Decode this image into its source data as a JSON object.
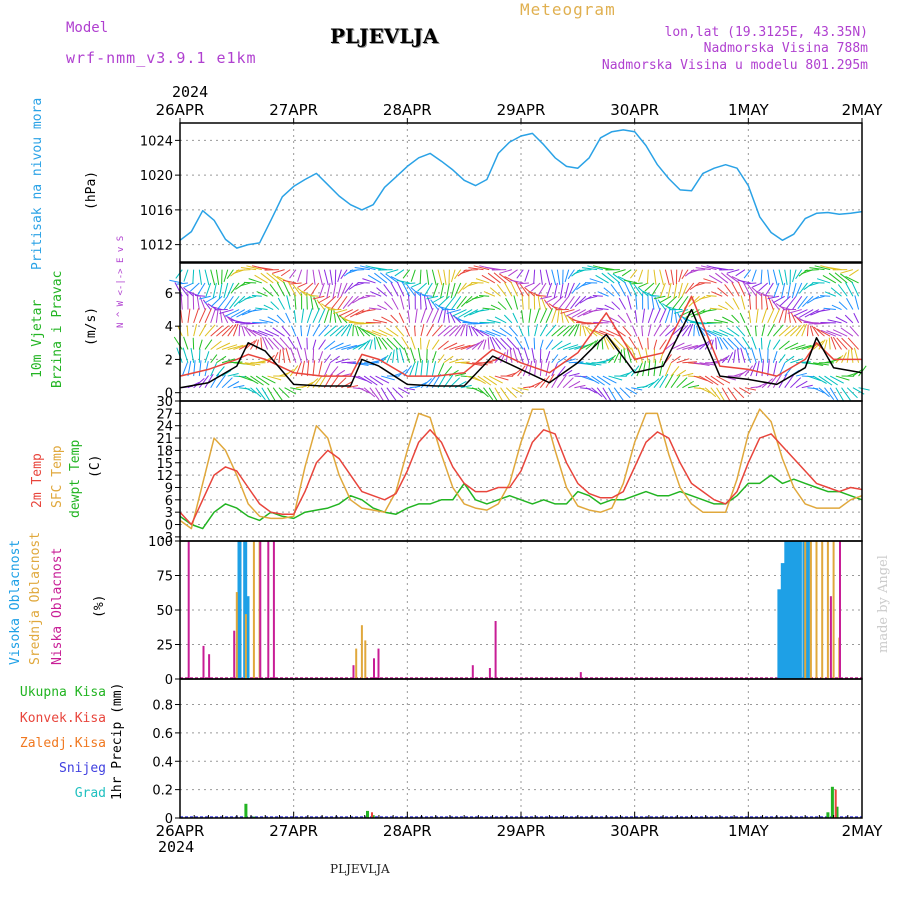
{
  "header": {
    "model_label": "Model",
    "model_name": "wrf-nmm_v3.9.1 e1km",
    "title": "PLJEVLJA",
    "subtitle": "Meteogram",
    "lonlat": "lon,lat (19.3125E, 43.35N)",
    "elevation": "Nadmorska Visina 788m",
    "model_elevation": "Nadmorska Visina u modelu 801.295m",
    "footer_title": "PLJEVLJA",
    "watermark": "made by Angel",
    "year_top": "2024",
    "year_bottom": "2024"
  },
  "colors": {
    "pressure": "#2aa2e6",
    "temp2m": "#e8453c",
    "sfc_temp": "#e0a83c",
    "dewpoint": "#22b422",
    "wind_speed": "#000000",
    "wind_max": "#e8453c",
    "purple": "#b040d0",
    "cloud_high": "#1ea0e6",
    "cloud_mid": "#e0a83c",
    "cloud_low": "#c81e96",
    "rain_total": "#22b422",
    "rain_conv": "#e8453c",
    "rain_frz": "#f07820",
    "snow": "#4040e0",
    "graupel": "#20c0c0"
  },
  "chart_data": [
    {
      "type": "line",
      "panel": "pressure",
      "ylabel": "(hPa)",
      "side_labels": [
        "Pritisak na nivou mora"
      ],
      "x_ticks": [
        "26APR",
        "27APR",
        "28APR",
        "29APR",
        "30APR",
        "1MAY",
        "2MAY"
      ],
      "ylim": [
        1010,
        1026
      ],
      "yticks": [
        1012,
        1016,
        1020,
        1024
      ],
      "x_days": [
        0,
        0.1,
        0.2,
        0.3,
        0.4,
        0.5,
        0.6,
        0.7,
        0.8,
        0.9,
        1.0,
        1.1,
        1.2,
        1.3,
        1.4,
        1.5,
        1.6,
        1.7,
        1.8,
        1.9,
        2.0,
        2.1,
        2.2,
        2.3,
        2.4,
        2.5,
        2.6,
        2.7,
        2.8,
        2.9,
        3.0,
        3.1,
        3.2,
        3.3,
        3.4,
        3.5,
        3.6,
        3.7,
        3.8,
        3.9,
        4.0,
        4.1,
        4.2,
        4.3,
        4.4,
        4.5,
        4.6,
        4.7,
        4.8,
        4.9,
        5.0,
        5.1,
        5.2,
        5.3,
        5.4,
        5.5,
        5.6,
        5.7,
        5.8,
        5.9,
        6.0
      ],
      "series": [
        {
          "values": [
            1012.5,
            1013.5,
            1015.9,
            1014.8,
            1012.6,
            1011.6,
            1012.0,
            1012.2,
            1014.8,
            1017.5,
            1018.7,
            1019.5,
            1020.2,
            1018.9,
            1017.6,
            1016.6,
            1016.0,
            1016.6,
            1018.6,
            1019.8,
            1021.0,
            1022.0,
            1022.5,
            1021.6,
            1020.6,
            1019.4,
            1018.8,
            1019.5,
            1022.5,
            1023.8,
            1024.5,
            1024.8,
            1023.5,
            1022.0,
            1021.0,
            1020.8,
            1022.0,
            1024.3,
            1025.0,
            1025.2,
            1025.0,
            1023.4,
            1021.2,
            1019.6,
            1018.3,
            1018.2,
            1020.2,
            1020.8,
            1021.2,
            1020.8,
            1018.8,
            1015.2,
            1013.4,
            1012.5,
            1013.2,
            1015.0,
            1015.6,
            1015.7,
            1015.5,
            1015.6,
            1015.8
          ]
        }
      ]
    },
    {
      "type": "line",
      "panel": "wind",
      "ylabel": "(m/s)",
      "side_labels": [
        "10m Vjetar",
        "Brzina i Pravac"
      ],
      "compass_label": "N ^ W <-|-> E v S",
      "ylim": [
        -0.5,
        7.8
      ],
      "yticks": [
        0,
        2,
        4,
        6
      ],
      "x_days": [
        0,
        0.25,
        0.5,
        0.6,
        0.75,
        1.0,
        1.25,
        1.5,
        1.6,
        1.75,
        2.0,
        2.25,
        2.5,
        2.75,
        3.0,
        3.25,
        3.5,
        3.75,
        4.0,
        4.25,
        4.5,
        4.75,
        5.0,
        5.25,
        5.5,
        5.6,
        5.75,
        6.0
      ],
      "series": [
        {
          "name": "speed",
          "values": [
            0.3,
            0.6,
            1.6,
            3.0,
            2.5,
            0.5,
            0.4,
            0.4,
            2.0,
            1.6,
            0.5,
            0.4,
            0.4,
            2.2,
            1.4,
            0.6,
            1.8,
            3.5,
            1.2,
            1.6,
            5.0,
            1.0,
            0.8,
            0.5,
            1.5,
            3.3,
            1.5,
            1.2
          ]
        },
        {
          "name": "max",
          "values": [
            1.0,
            1.4,
            2.0,
            2.3,
            2.0,
            1.2,
            1.0,
            1.0,
            2.3,
            2.0,
            1.0,
            1.0,
            1.2,
            2.6,
            1.8,
            1.2,
            2.4,
            4.8,
            2.0,
            2.4,
            5.8,
            1.6,
            1.4,
            1.0,
            2.0,
            3.0,
            2.0,
            2.0
          ]
        }
      ]
    },
    {
      "type": "line",
      "panel": "temperature",
      "ylabel": "(C)",
      "side_labels": [
        "2m Temp",
        "SFC Temp",
        "dewpt Temp"
      ],
      "ylim": [
        -4,
        30
      ],
      "yticks": [
        -3,
        0,
        3,
        6,
        9,
        12,
        15,
        18,
        21,
        24,
        27,
        30
      ],
      "x_days": [
        0,
        0.1,
        0.2,
        0.3,
        0.4,
        0.5,
        0.6,
        0.7,
        0.8,
        0.9,
        1.0,
        1.1,
        1.2,
        1.3,
        1.4,
        1.5,
        1.6,
        1.7,
        1.8,
        1.9,
        2.0,
        2.1,
        2.2,
        2.3,
        2.4,
        2.5,
        2.6,
        2.7,
        2.8,
        2.9,
        3.0,
        3.1,
        3.2,
        3.3,
        3.4,
        3.5,
        3.6,
        3.7,
        3.8,
        3.9,
        4.0,
        4.1,
        4.2,
        4.3,
        4.4,
        4.5,
        4.6,
        4.7,
        4.8,
        4.9,
        5.0,
        5.1,
        5.2,
        5.3,
        5.4,
        5.5,
        5.6,
        5.7,
        5.8,
        5.9,
        6.0
      ],
      "series": [
        {
          "name": "2m Temp",
          "values": [
            3,
            0,
            6,
            12,
            14,
            13,
            9,
            5,
            3,
            2.5,
            2.5,
            8,
            15,
            18,
            16,
            12,
            8,
            7,
            6,
            7.5,
            13,
            20,
            23,
            20,
            14,
            10,
            8,
            8,
            9,
            9,
            13,
            20,
            23,
            22,
            15,
            10,
            7.5,
            6.5,
            6.5,
            8,
            14,
            20,
            22.5,
            21,
            15,
            10,
            8,
            6,
            5,
            8,
            15,
            21,
            22,
            19,
            16,
            13,
            10,
            9,
            8,
            9,
            8.5
          ]
        },
        {
          "name": "SFC Temp",
          "values": [
            1,
            -1,
            10,
            21,
            18,
            12,
            5,
            2,
            1.5,
            1.5,
            2,
            14,
            24,
            21,
            12,
            6,
            4,
            3.5,
            3,
            8,
            18,
            27,
            26,
            17,
            9,
            5,
            4,
            3.5,
            5,
            10,
            20,
            28,
            28,
            18,
            9,
            4.5,
            3.5,
            3,
            4,
            10,
            20,
            27,
            27,
            17,
            9,
            5,
            3,
            3,
            3,
            11,
            22,
            28,
            25,
            16,
            9,
            5,
            4,
            4,
            4,
            6,
            7
          ]
        },
        {
          "name": "dewpt Temp",
          "values": [
            2,
            0,
            -1,
            3,
            5,
            4,
            2,
            1,
            3,
            2,
            1.5,
            3,
            3.5,
            4,
            5,
            7,
            6,
            4,
            3,
            2.5,
            4,
            5,
            5,
            6,
            6,
            10,
            6,
            5,
            6,
            7,
            6,
            5,
            6,
            5,
            5,
            8,
            7,
            5,
            6,
            6,
            7,
            8,
            7,
            7,
            8,
            7,
            6,
            5,
            5,
            7,
            10,
            10,
            12,
            10,
            11,
            10,
            9,
            8,
            8,
            7,
            6
          ]
        }
      ]
    },
    {
      "type": "bar",
      "panel": "clouds",
      "ylabel": "(%)",
      "side_labels": [
        "Visoka Oblacnost",
        "Srednja Oblacnost",
        "Niska Oblacnost"
      ],
      "ylim": [
        0,
        100
      ],
      "yticks": [
        0,
        25,
        50,
        75,
        100
      ],
      "series": [
        {
          "name": "Visoka Oblacnost",
          "x_days": [
            0.55,
            0.6,
            0.62,
            5.3,
            5.33,
            5.36,
            5.39,
            5.42,
            5.45,
            5.48,
            5.52,
            5.55
          ],
          "values": [
            100,
            100,
            60,
            65,
            84,
            100,
            100,
            100,
            100,
            100,
            100,
            100
          ]
        },
        {
          "name": "Srednja Oblacnost",
          "x_days": [
            0.5,
            0.58,
            0.65,
            0.7,
            1.55,
            1.6,
            1.63,
            5.5,
            5.55,
            5.6,
            5.65,
            5.7,
            5.75,
            5.8
          ],
          "values": [
            63,
            47,
            100,
            100,
            22,
            39,
            28,
            100,
            100,
            100,
            100,
            100,
            100,
            30
          ]
        },
        {
          "name": "Niska Oblacnost",
          "x_days": [
            0.05,
            0.18,
            0.23,
            0.45,
            0.68,
            0.75,
            0.8,
            1.5,
            1.68,
            1.72,
            2.55,
            2.7,
            2.75,
            3.5,
            5.7,
            5.78
          ],
          "values": [
            100,
            24,
            18,
            35,
            100,
            100,
            100,
            10,
            15,
            22,
            10,
            8,
            42,
            5,
            60,
            100
          ]
        }
      ]
    },
    {
      "type": "bar",
      "panel": "precip",
      "ylabel": "1hr Precip (mm)",
      "side_labels": [
        "Ukupna Kisa",
        "Konvek.Kisa",
        "Zaledj.Kisa",
        "Snijeg",
        "Grad"
      ],
      "ylim": [
        0,
        0.98
      ],
      "yticks": [
        0,
        0.2,
        0.4,
        0.6,
        0.8
      ],
      "series": [
        {
          "name": "Ukupna Kisa",
          "x_days": [
            0.58,
            0.65,
            1.65,
            1.7,
            5.7,
            5.74,
            5.78
          ],
          "values": [
            0.1,
            0.01,
            0.05,
            0.02,
            0.04,
            0.22,
            0.08
          ]
        },
        {
          "name": "Konvek.Kisa",
          "x_days": [
            1.68,
            5.76
          ],
          "values": [
            0.04,
            0.2
          ]
        }
      ]
    }
  ]
}
